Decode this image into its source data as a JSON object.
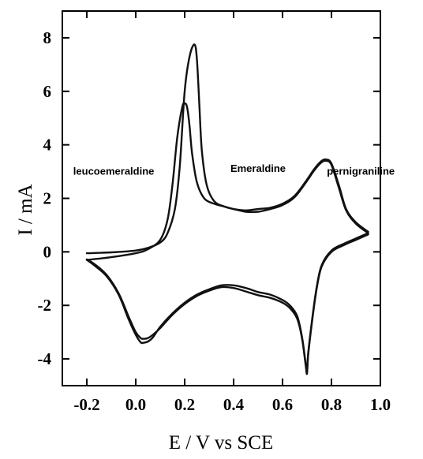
{
  "chart_data": {
    "type": "line",
    "xlabel": "E / V vs SCE",
    "ylabel": "I / mA",
    "xlim": [
      -0.3,
      1.0
    ],
    "ylim": [
      -5,
      9
    ],
    "xticks": [
      "-0.2",
      "0.0",
      "0.2",
      "0.4",
      "0.6",
      "0.8",
      "1.0"
    ],
    "xtick_values": [
      -0.2,
      0.0,
      0.2,
      0.4,
      0.6,
      0.8,
      1.0
    ],
    "yticks": [
      "-4",
      "-2",
      "0",
      "2",
      "4",
      "6",
      "8"
    ],
    "ytick_values": [
      -4,
      -2,
      0,
      2,
      4,
      6,
      8
    ],
    "grid": false,
    "annotations": [
      {
        "text": "leucoemeraldine",
        "x": -0.09,
        "y": 3.0
      },
      {
        "text": "Emeraldine",
        "x": 0.5,
        "y": 3.1
      },
      {
        "text": "pernigraniline",
        "x": 0.92,
        "y": 3.0
      }
    ],
    "series": [
      {
        "x": [
          -0.2,
          -0.1,
          0.0,
          0.05,
          0.1,
          0.13,
          0.16,
          0.18,
          0.2,
          0.22,
          0.24,
          0.25,
          0.26,
          0.27,
          0.29,
          0.32,
          0.36,
          0.4,
          0.45,
          0.5,
          0.55,
          0.6,
          0.65,
          0.7,
          0.73,
          0.76,
          0.78,
          0.8,
          0.83,
          0.86,
          0.9,
          0.95
        ],
        "y": [
          -0.05,
          -0.02,
          0.05,
          0.15,
          0.35,
          0.7,
          1.6,
          3.2,
          6.0,
          7.3,
          7.75,
          7.2,
          5.5,
          3.8,
          2.5,
          1.9,
          1.7,
          1.6,
          1.55,
          1.6,
          1.65,
          1.8,
          2.1,
          2.7,
          3.1,
          3.4,
          3.45,
          3.3,
          2.5,
          1.6,
          1.1,
          0.75
        ]
      },
      {
        "x": [
          -0.2,
          -0.1,
          0.0,
          0.05,
          0.1,
          0.13,
          0.15,
          0.17,
          0.19,
          0.2,
          0.21,
          0.22,
          0.23,
          0.25,
          0.28,
          0.32,
          0.36,
          0.4,
          0.45,
          0.5,
          0.55,
          0.6,
          0.65,
          0.7,
          0.73,
          0.76,
          0.78,
          0.8,
          0.83,
          0.86,
          0.9,
          0.95
        ],
        "y": [
          -0.3,
          -0.2,
          -0.05,
          0.1,
          0.45,
          1.2,
          2.5,
          4.3,
          5.4,
          5.55,
          5.4,
          4.7,
          3.7,
          2.6,
          2.0,
          1.8,
          1.7,
          1.6,
          1.5,
          1.5,
          1.6,
          1.75,
          2.05,
          2.65,
          3.05,
          3.35,
          3.4,
          3.25,
          2.4,
          1.55,
          1.05,
          0.7
        ]
      },
      {
        "x": [
          0.95,
          0.9,
          0.85,
          0.8,
          0.76,
          0.74,
          0.72,
          0.705,
          0.7,
          0.695,
          0.68,
          0.66,
          0.63,
          0.6,
          0.55,
          0.5,
          0.45,
          0.4,
          0.35,
          0.3,
          0.25,
          0.2,
          0.15,
          0.1,
          0.07,
          0.05,
          0.03,
          0.02,
          0.0,
          -0.03,
          -0.07,
          -0.12,
          -0.17,
          -0.2
        ],
        "y": [
          0.7,
          0.5,
          0.3,
          0.05,
          -0.5,
          -1.3,
          -2.6,
          -3.8,
          -4.5,
          -4.2,
          -3.2,
          -2.4,
          -2.0,
          -1.8,
          -1.6,
          -1.5,
          -1.35,
          -1.25,
          -1.25,
          -1.4,
          -1.6,
          -1.9,
          -2.3,
          -2.8,
          -3.2,
          -3.35,
          -3.4,
          -3.38,
          -3.1,
          -2.5,
          -1.6,
          -0.9,
          -0.5,
          -0.3
        ]
      },
      {
        "x": [
          0.95,
          0.9,
          0.85,
          0.8,
          0.76,
          0.74,
          0.72,
          0.705,
          0.7,
          0.695,
          0.68,
          0.66,
          0.63,
          0.6,
          0.55,
          0.5,
          0.45,
          0.4,
          0.35,
          0.3,
          0.25,
          0.2,
          0.15,
          0.1,
          0.07,
          0.05,
          0.03,
          0.02,
          0.0,
          -0.03,
          -0.07,
          -0.12,
          -0.17,
          -0.2
        ],
        "y": [
          0.65,
          0.45,
          0.25,
          0.0,
          -0.55,
          -1.35,
          -2.65,
          -3.85,
          -4.55,
          -4.25,
          -3.25,
          -2.5,
          -2.1,
          -1.9,
          -1.72,
          -1.62,
          -1.48,
          -1.35,
          -1.32,
          -1.45,
          -1.65,
          -1.95,
          -2.35,
          -2.85,
          -3.1,
          -3.22,
          -3.25,
          -3.22,
          -3.0,
          -2.4,
          -1.55,
          -0.85,
          -0.45,
          -0.28
        ]
      }
    ]
  }
}
